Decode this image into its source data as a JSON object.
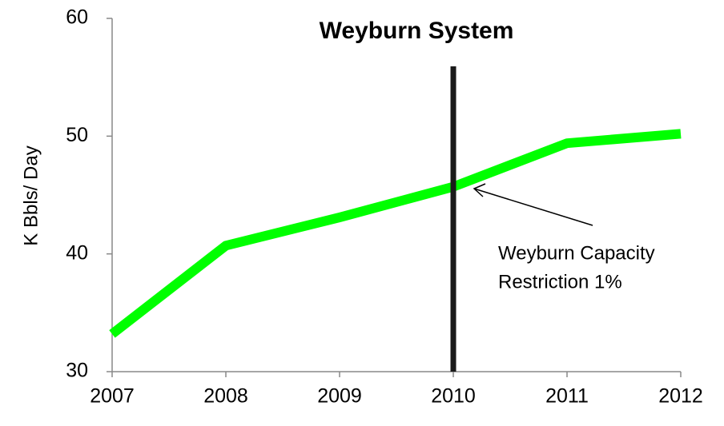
{
  "chart_data": {
    "type": "line",
    "title": "Weyburn System",
    "y_label": "K Bbls/ Day",
    "x": [
      2007,
      2008,
      2009,
      2010,
      2011,
      2012
    ],
    "series": [
      {
        "name": "Weyburn",
        "color": "#00ff00",
        "values": [
          33.2,
          40.7,
          43.1,
          45.7,
          49.4,
          50.2
        ]
      }
    ],
    "xlim": [
      2007,
      2012
    ],
    "xticks": [
      2007,
      2008,
      2009,
      2010,
      2011,
      2012
    ],
    "ylim": [
      30,
      60
    ],
    "yticks": [
      30,
      40,
      50,
      60
    ],
    "marker_line": {
      "x": 2010,
      "color": "#1a1a1a"
    },
    "annotation": [
      "Weyburn Capacity",
      "Restriction 1%"
    ]
  }
}
